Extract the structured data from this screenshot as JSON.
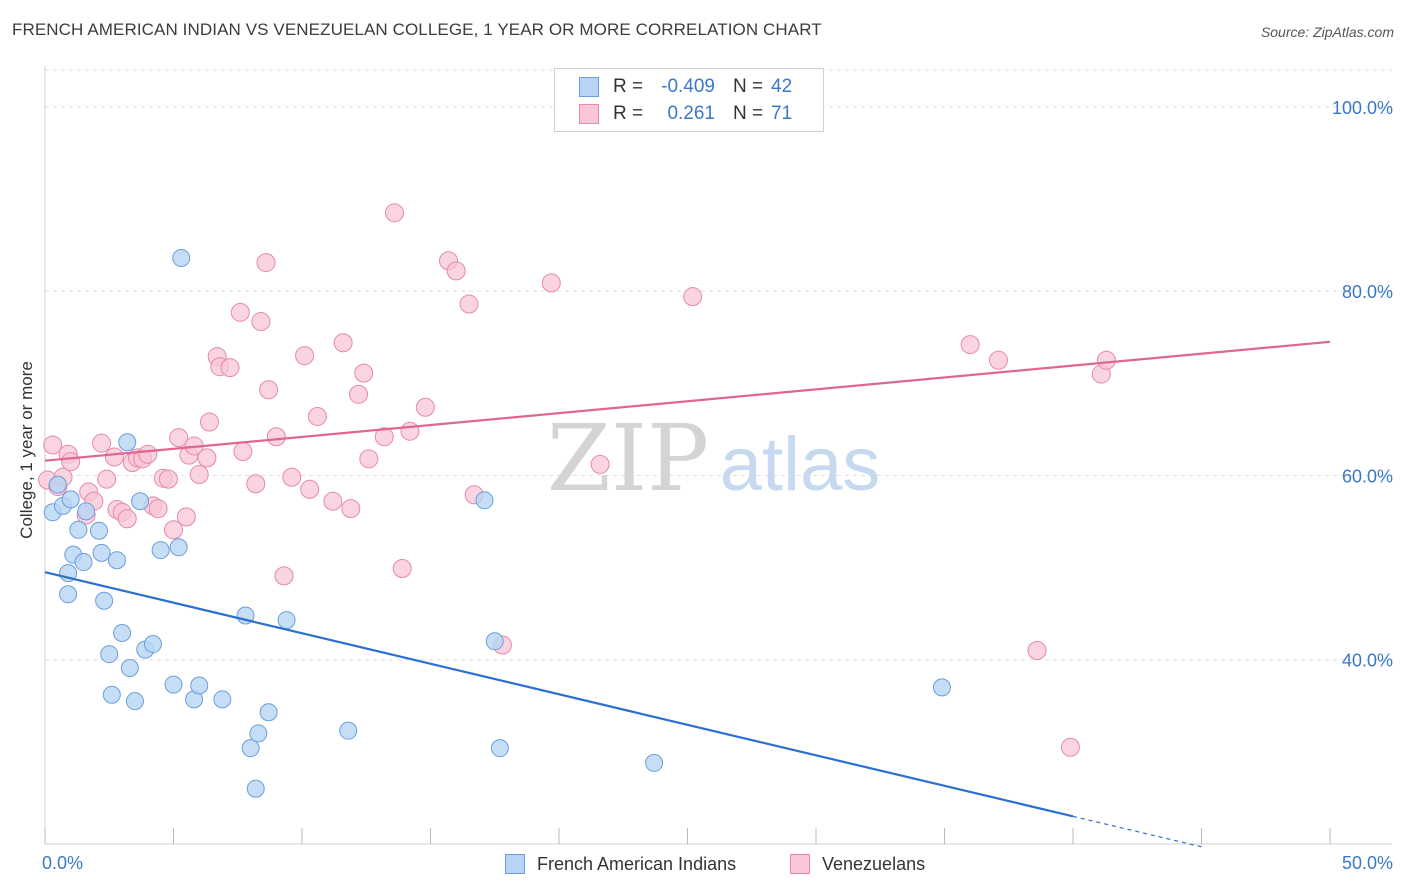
{
  "header": {
    "title": "FRENCH AMERICAN INDIAN VS VENEZUELAN COLLEGE, 1 YEAR OR MORE CORRELATION CHART",
    "source": "Source: ZipAtlas.com"
  },
  "watermark": {
    "part1": "ZIP",
    "part2": "atlas"
  },
  "legend": {
    "rows": [
      {
        "label": "R =",
        "r": "-0.409",
        "n_label": "N =",
        "n": "42"
      },
      {
        "label": "R =",
        "r": "0.261",
        "n_label": "N =",
        "n": "71"
      }
    ]
  },
  "colors": {
    "blue_fill": "#b8d4f4",
    "blue_stroke": "#6a9fdc",
    "blue_line": "#2b6fd0",
    "pink_fill": "#f8c6d6",
    "pink_stroke": "#e58aa8",
    "pink_line": "#e06690",
    "tick_label": "#3a78c8",
    "grid": "#dddddd"
  },
  "chart_data": {
    "type": "scatter",
    "title": "FRENCH AMERICAN INDIAN VS VENEZUELAN COLLEGE, 1 YEAR OR MORE CORRELATION CHART",
    "xlabel": "",
    "ylabel": "College, 1 year or more",
    "xlim": [
      0,
      50
    ],
    "ylim": [
      20,
      104
    ],
    "x_ticks": [
      0,
      5,
      10,
      15,
      20,
      25,
      30,
      35,
      40,
      45,
      50
    ],
    "x_tick_labels": [
      "0.0%",
      "50.0%"
    ],
    "y_ticks": [
      40,
      60,
      80,
      100
    ],
    "y_tick_labels": [
      "40.0%",
      "60.0%",
      "80.0%",
      "100.0%"
    ],
    "grid": true,
    "legend_position": "bottom",
    "series": [
      {
        "name": "French American Indians",
        "color": "#6a9fdc",
        "trend": {
          "x": [
            0,
            40
          ],
          "y": [
            49.5,
            23.0
          ],
          "dashed_to": [
            45,
            19.7
          ]
        },
        "points": [
          [
            0.3,
            56.0
          ],
          [
            0.5,
            59.0
          ],
          [
            0.7,
            56.7
          ],
          [
            0.9,
            49.4
          ],
          [
            0.9,
            47.1
          ],
          [
            1.0,
            57.4
          ],
          [
            1.1,
            51.4
          ],
          [
            1.3,
            54.1
          ],
          [
            1.5,
            50.6
          ],
          [
            1.6,
            56.1
          ],
          [
            2.1,
            54.0
          ],
          [
            2.2,
            51.6
          ],
          [
            2.3,
            46.4
          ],
          [
            2.5,
            40.6
          ],
          [
            2.6,
            36.2
          ],
          [
            2.8,
            50.8
          ],
          [
            3.0,
            42.9
          ],
          [
            3.2,
            63.6
          ],
          [
            3.3,
            39.1
          ],
          [
            3.5,
            35.5
          ],
          [
            3.7,
            57.2
          ],
          [
            3.9,
            41.1
          ],
          [
            4.2,
            41.7
          ],
          [
            4.5,
            51.9
          ],
          [
            5.0,
            37.3
          ],
          [
            5.2,
            52.2
          ],
          [
            5.3,
            83.6
          ],
          [
            5.8,
            35.7
          ],
          [
            6.0,
            37.2
          ],
          [
            6.9,
            35.7
          ],
          [
            7.8,
            44.8
          ],
          [
            8.0,
            30.4
          ],
          [
            8.2,
            26.0
          ],
          [
            8.3,
            32.0
          ],
          [
            8.7,
            34.3
          ],
          [
            9.4,
            44.3
          ],
          [
            11.8,
            32.3
          ],
          [
            17.1,
            57.3
          ],
          [
            17.5,
            42.0
          ],
          [
            17.7,
            30.4
          ],
          [
            23.7,
            28.8
          ],
          [
            34.9,
            37.0
          ]
        ]
      },
      {
        "name": "Venezuelans",
        "color": "#e58aa8",
        "trend": {
          "x": [
            0,
            50
          ],
          "y": [
            61.6,
            74.5
          ]
        },
        "points": [
          [
            0.1,
            59.5
          ],
          [
            0.3,
            63.3
          ],
          [
            0.5,
            58.8
          ],
          [
            0.7,
            59.8
          ],
          [
            0.9,
            62.3
          ],
          [
            1.0,
            61.5
          ],
          [
            1.6,
            55.7
          ],
          [
            1.7,
            58.2
          ],
          [
            1.9,
            57.2
          ],
          [
            2.2,
            63.5
          ],
          [
            2.4,
            59.6
          ],
          [
            2.7,
            62.0
          ],
          [
            2.8,
            56.3
          ],
          [
            3.0,
            56.0
          ],
          [
            3.2,
            55.3
          ],
          [
            3.4,
            61.4
          ],
          [
            3.6,
            61.9
          ],
          [
            3.8,
            61.8
          ],
          [
            4.0,
            62.3
          ],
          [
            4.2,
            56.7
          ],
          [
            4.4,
            56.4
          ],
          [
            4.6,
            59.7
          ],
          [
            4.8,
            59.6
          ],
          [
            5.0,
            54.1
          ],
          [
            5.2,
            64.1
          ],
          [
            5.5,
            55.5
          ],
          [
            5.6,
            62.2
          ],
          [
            5.8,
            63.2
          ],
          [
            6.0,
            60.1
          ],
          [
            6.3,
            61.9
          ],
          [
            6.4,
            65.8
          ],
          [
            6.7,
            72.9
          ],
          [
            6.8,
            71.8
          ],
          [
            7.2,
            71.7
          ],
          [
            7.6,
            77.7
          ],
          [
            7.7,
            62.6
          ],
          [
            8.2,
            59.1
          ],
          [
            8.4,
            76.7
          ],
          [
            8.6,
            83.1
          ],
          [
            8.7,
            69.3
          ],
          [
            9.0,
            64.2
          ],
          [
            9.3,
            49.1
          ],
          [
            9.6,
            59.8
          ],
          [
            10.1,
            73.0
          ],
          [
            10.3,
            58.5
          ],
          [
            10.6,
            66.4
          ],
          [
            11.2,
            57.2
          ],
          [
            11.6,
            74.4
          ],
          [
            11.9,
            56.4
          ],
          [
            12.2,
            68.8
          ],
          [
            12.4,
            71.1
          ],
          [
            12.6,
            61.8
          ],
          [
            13.2,
            64.2
          ],
          [
            13.6,
            88.5
          ],
          [
            13.9,
            49.9
          ],
          [
            14.2,
            64.8
          ],
          [
            14.8,
            67.4
          ],
          [
            15.7,
            83.3
          ],
          [
            16.0,
            82.2
          ],
          [
            16.5,
            78.6
          ],
          [
            16.7,
            57.9
          ],
          [
            17.8,
            41.6
          ],
          [
            19.7,
            80.9
          ],
          [
            21.6,
            61.2
          ],
          [
            25.2,
            79.4
          ],
          [
            36.0,
            74.2
          ],
          [
            37.1,
            72.5
          ],
          [
            38.6,
            41.0
          ],
          [
            41.1,
            71.0
          ],
          [
            41.3,
            72.5
          ],
          [
            39.9,
            30.5
          ]
        ]
      }
    ]
  }
}
